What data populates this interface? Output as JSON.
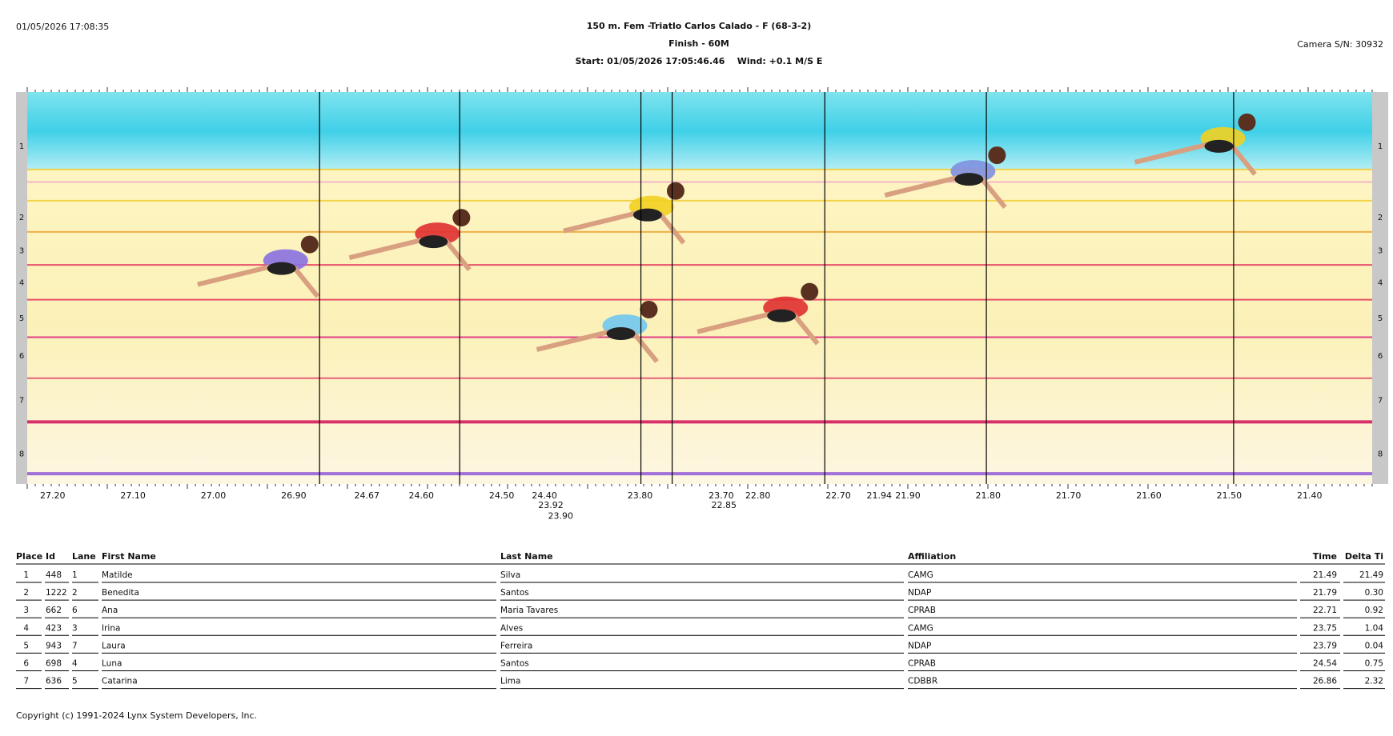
{
  "header": {
    "printed_at": "01/05/2026 17:08:35",
    "title": "150 m. Fem -Triatlo Carlos Calado - F (68-3-2)",
    "subtitle": "Finish - 60M",
    "start_line": "Start: 01/05/2026 17:05:46.46    Wind: +0.1 M/S E",
    "camera": "Camera S/N: 30932"
  },
  "photo": {
    "lanes": [
      "1",
      "2",
      "3",
      "4",
      "5",
      "6",
      "7",
      "8"
    ],
    "time_labels": [
      "27.20",
      "27.10",
      "27.00",
      "26.90",
      "24.67",
      "24.60",
      "24.50",
      "24.40",
      "23.92",
      "23.90",
      "23.80",
      "23.70",
      "22.85",
      "22.80",
      "22.70",
      "21.94",
      "21.90",
      "21.80",
      "21.70",
      "21.60",
      "21.50",
      "21.40"
    ]
  },
  "table": {
    "columns": [
      "Place",
      "Id",
      "Lane",
      "First Name",
      "Last Name",
      "Affiliation",
      "Time",
      "Delta Ti"
    ],
    "rows": [
      [
        "1",
        "448",
        "1",
        "Matilde",
        "Silva",
        "CAMG",
        "21.49",
        "21.49"
      ],
      [
        "2",
        "1222",
        "2",
        "Benedita",
        "Santos",
        "NDAP",
        "21.79",
        "0.30"
      ],
      [
        "3",
        "662",
        "6",
        "Ana",
        "Maria Tavares",
        "CPRAB",
        "22.71",
        "0.92"
      ],
      [
        "4",
        "423",
        "3",
        "Irina",
        "Alves",
        "CAMG",
        "23.75",
        "1.04"
      ],
      [
        "5",
        "943",
        "7",
        "Laura",
        "Ferreira",
        "NDAP",
        "23.79",
        "0.04"
      ],
      [
        "6",
        "698",
        "4",
        "Luna",
        "Santos",
        "CPRAB",
        "24.54",
        "0.75"
      ],
      [
        "7",
        "636",
        "5",
        "Catarina",
        "Lima",
        "CDBBR",
        "26.86",
        "2.32"
      ]
    ]
  },
  "footer": {
    "copyright": "Copyright (c) 1991-2024 Lynx System Developers, Inc."
  }
}
